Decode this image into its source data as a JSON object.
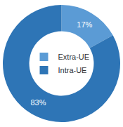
{
  "chart_data": {
    "type": "pie",
    "categories": [
      "Extra-UE",
      "Intra-UE"
    ],
    "values": [
      17,
      83
    ],
    "value_labels": [
      "17%",
      "83%"
    ],
    "colors": [
      "#5b9bd5",
      "#2e75b6"
    ],
    "data_labels": true,
    "legend": "center"
  }
}
